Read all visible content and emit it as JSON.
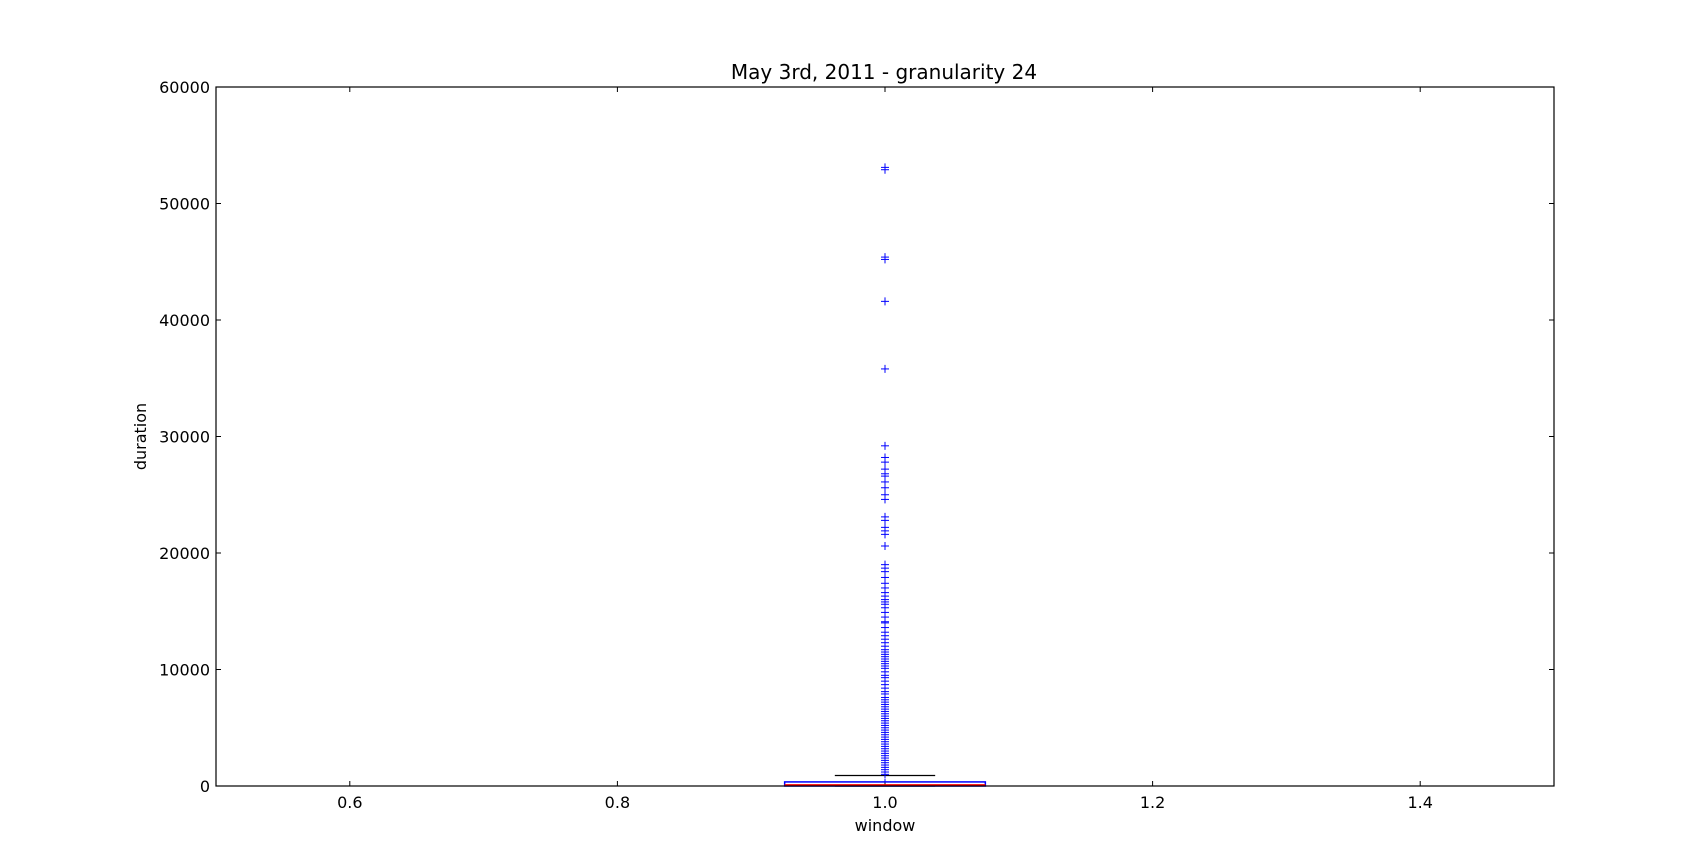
{
  "chart_data": {
    "type": "box",
    "title": "May 3rd, 2011 - granularity 24",
    "xlabel": "window",
    "ylabel": "duration",
    "xlim": [
      0.5,
      1.5
    ],
    "ylim": [
      0,
      60000
    ],
    "xticks": [
      {
        "value": 0.6,
        "label": "0.6"
      },
      {
        "value": 0.8,
        "label": "0.8"
      },
      {
        "value": 1.0,
        "label": "1.0"
      },
      {
        "value": 1.2,
        "label": "1.2"
      },
      {
        "value": 1.4,
        "label": "1.4"
      }
    ],
    "yticks": [
      {
        "value": 0,
        "label": "0"
      },
      {
        "value": 10000,
        "label": "10000"
      },
      {
        "value": 20000,
        "label": "20000"
      },
      {
        "value": 30000,
        "label": "30000"
      },
      {
        "value": 40000,
        "label": "40000"
      },
      {
        "value": 50000,
        "label": "50000"
      },
      {
        "value": 60000,
        "label": "60000"
      }
    ],
    "grid": false,
    "box": {
      "position": 1.0,
      "q1": 0,
      "median": 100,
      "q3": 350,
      "whisker_low": 0,
      "whisker_high": 900,
      "box_width": 0.15,
      "cap_width": 0.075
    },
    "outliers": [
      53100,
      52900,
      45400,
      45200,
      41600,
      35800,
      29200,
      28200,
      27800,
      27200,
      26800,
      26600,
      26100,
      25600,
      25000,
      24600,
      23100,
      22800,
      22200,
      21900,
      21600,
      20600,
      19000,
      18700,
      18400,
      17900,
      17400,
      17000,
      16600,
      16300,
      16000,
      15800,
      15600,
      15300,
      14900,
      14500,
      14100,
      14000,
      13600,
      13200,
      12900,
      12600,
      12300,
      12000,
      11700,
      11500,
      11300,
      11100,
      10900,
      10700,
      10500,
      10300,
      10100,
      9800,
      9500,
      9300,
      9000,
      8700,
      8400,
      8100,
      7900,
      7600,
      7400,
      7200,
      7000,
      6800,
      6600,
      6400,
      6200,
      6000,
      5800,
      5600,
      5400,
      5200,
      5000,
      4800,
      4600,
      4400,
      4200,
      4000,
      3800,
      3600,
      3400,
      3200,
      3000,
      2800,
      2600,
      2400,
      2200,
      2000,
      1800,
      1600,
      1400,
      1200,
      1000
    ],
    "colors": {
      "box": "#0000ff",
      "median": "#ff0000",
      "whisker": "#000000",
      "outlier": "#0000ff",
      "axes": "#000000"
    }
  }
}
